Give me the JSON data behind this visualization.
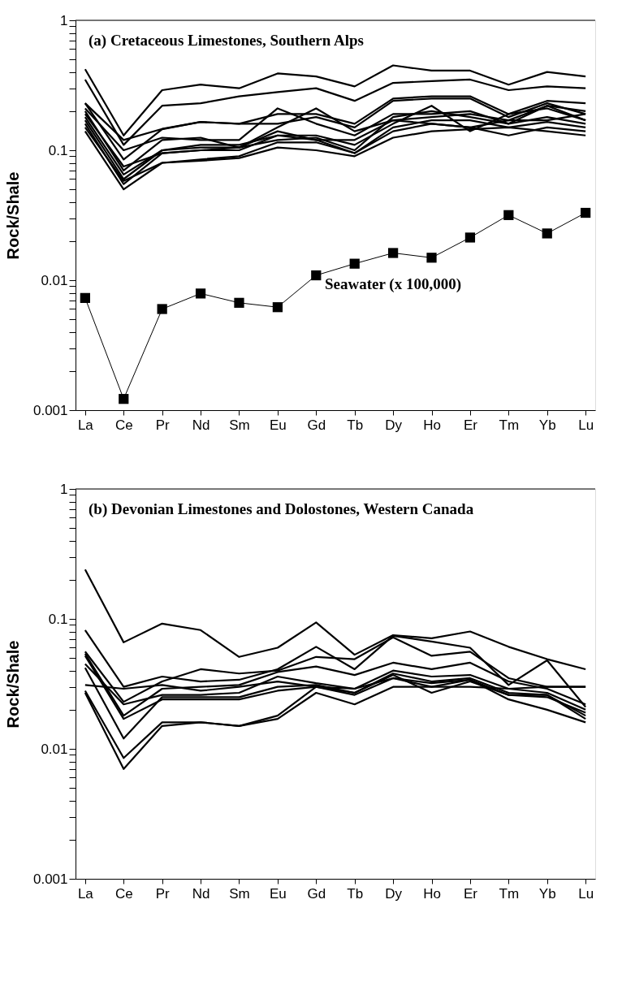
{
  "chart_data": [
    {
      "type": "line",
      "title": "(a) Cretaceous Limestones, Southern Alps",
      "ylabel": "Rock/Shale",
      "log": true,
      "grid": false,
      "marker": "none",
      "categories": [
        "La",
        "Ce",
        "Pr",
        "Nd",
        "Sm",
        "Eu",
        "Gd",
        "Tb",
        "Dy",
        "Ho",
        "Er",
        "Tm",
        "Yb",
        "Lu"
      ],
      "ylim": [
        0.001,
        1
      ],
      "yticks": [
        0.001,
        {
          "value": 0.002,
          "label": null
        },
        {
          "value": 0.003,
          "label": null
        },
        {
          "value": 0.004,
          "label": null
        },
        {
          "value": 0.005,
          "label": null
        },
        {
          "value": 0.006,
          "label": null
        },
        {
          "value": 0.007,
          "label": null
        },
        {
          "value": 0.008,
          "label": null
        },
        {
          "value": 0.009,
          "label": null
        },
        0.01,
        {
          "value": 0.02,
          "label": null
        },
        {
          "value": 0.03,
          "label": null
        },
        {
          "value": 0.04,
          "label": null
        },
        {
          "value": 0.05,
          "label": null
        },
        {
          "value": 0.06,
          "label": null
        },
        {
          "value": 0.07,
          "label": null
        },
        {
          "value": 0.08,
          "label": null
        },
        {
          "value": 0.09,
          "label": null
        },
        0.1,
        {
          "value": 0.2,
          "label": null
        },
        {
          "value": 0.3,
          "label": null
        },
        {
          "value": 0.4,
          "label": null
        },
        {
          "value": 0.5,
          "label": null
        },
        {
          "value": 0.6,
          "label": null
        },
        {
          "value": 0.7,
          "label": null
        },
        {
          "value": 0.8,
          "label": null
        },
        {
          "value": 0.9,
          "label": null
        },
        1
      ],
      "annotations": [
        "Seawater (x 100,000)"
      ],
      "series": [
        {
          "color": "#000000",
          "values": [
            0.42,
            0.13,
            0.29,
            0.32,
            0.3,
            0.39,
            0.37,
            0.31,
            0.45,
            0.41,
            0.41,
            0.32,
            0.4,
            0.37
          ]
        },
        {
          "color": "#000000",
          "values": [
            0.35,
            0.11,
            0.22,
            0.23,
            0.26,
            0.28,
            0.3,
            0.24,
            0.33,
            0.34,
            0.35,
            0.29,
            0.31,
            0.3
          ]
        },
        {
          "color": "#000000",
          "values": [
            0.23,
            0.12,
            0.146,
            0.165,
            0.16,
            0.19,
            0.19,
            0.16,
            0.25,
            0.26,
            0.26,
            0.19,
            0.24,
            0.23
          ]
        },
        {
          "color": "#000000",
          "values": [
            0.23,
            0.085,
            0.145,
            0.165,
            0.16,
            0.16,
            0.18,
            0.15,
            0.24,
            0.25,
            0.25,
            0.18,
            0.23,
            0.19
          ]
        },
        {
          "color": "#000000",
          "values": [
            0.21,
            0.1,
            0.125,
            0.12,
            0.12,
            0.21,
            0.16,
            0.13,
            0.19,
            0.19,
            0.2,
            0.16,
            0.22,
            0.2
          ]
        },
        {
          "color": "#000000",
          "values": [
            0.2,
            0.07,
            0.12,
            0.125,
            0.105,
            0.15,
            0.21,
            0.14,
            0.17,
            0.18,
            0.19,
            0.17,
            0.22,
            0.17
          ]
        },
        {
          "color": "#000000",
          "values": [
            0.18,
            0.065,
            0.1,
            0.11,
            0.11,
            0.13,
            0.13,
            0.11,
            0.16,
            0.22,
            0.14,
            0.19,
            0.21,
            0.17
          ]
        },
        {
          "color": "#000000",
          "values": [
            0.17,
            0.06,
            0.1,
            0.105,
            0.105,
            0.12,
            0.125,
            0.1,
            0.18,
            0.2,
            0.18,
            0.16,
            0.18,
            0.16
          ]
        },
        {
          "color": "#000000",
          "values": [
            0.16,
            0.055,
            0.095,
            0.1,
            0.1,
            0.13,
            0.12,
            0.095,
            0.15,
            0.17,
            0.17,
            0.15,
            0.165,
            0.15
          ]
        },
        {
          "color": "#000000",
          "values": [
            0.15,
            0.058,
            0.08,
            0.085,
            0.09,
            0.115,
            0.115,
            0.095,
            0.14,
            0.16,
            0.15,
            0.13,
            0.15,
            0.14
          ]
        },
        {
          "color": "#000000",
          "values": [
            0.14,
            0.05,
            0.08,
            0.083,
            0.087,
            0.105,
            0.1,
            0.09,
            0.125,
            0.14,
            0.145,
            0.15,
            0.14,
            0.13
          ]
        },
        {
          "color": "#000000",
          "values": [
            0.19,
            0.075,
            0.095,
            0.1,
            0.105,
            0.14,
            0.12,
            0.12,
            0.17,
            0.16,
            0.15,
            0.17,
            0.17,
            0.19
          ]
        },
        {
          "color": "#000000",
          "marker": "square",
          "values": [
            0.0073,
            0.00122,
            0.006,
            0.0079,
            0.0067,
            0.0062,
            0.0109,
            0.0134,
            0.0162,
            0.0149,
            0.0213,
            0.0317,
            0.0229,
            0.033
          ]
        }
      ]
    },
    {
      "type": "line",
      "title": "(b) Devonian Limestones and Dolostones, Western Canada",
      "ylabel": "Rock/Shale",
      "log": true,
      "grid": false,
      "marker": "none",
      "categories": [
        "La",
        "Ce",
        "Pr",
        "Nd",
        "Sm",
        "Eu",
        "Gd",
        "Tb",
        "Dy",
        "Ho",
        "Er",
        "Tm",
        "Yb",
        "Lu"
      ],
      "ylim": [
        0.001,
        1
      ],
      "yticks": [
        0.001,
        {
          "value": 0.002,
          "label": null
        },
        {
          "value": 0.003,
          "label": null
        },
        {
          "value": 0.004,
          "label": null
        },
        {
          "value": 0.005,
          "label": null
        },
        {
          "value": 0.006,
          "label": null
        },
        {
          "value": 0.007,
          "label": null
        },
        {
          "value": 0.008,
          "label": null
        },
        {
          "value": 0.009,
          "label": null
        },
        0.01,
        {
          "value": 0.02,
          "label": null
        },
        {
          "value": 0.03,
          "label": null
        },
        {
          "value": 0.04,
          "label": null
        },
        {
          "value": 0.05,
          "label": null
        },
        {
          "value": 0.06,
          "label": null
        },
        {
          "value": 0.07,
          "label": null
        },
        {
          "value": 0.08,
          "label": null
        },
        {
          "value": 0.09,
          "label": null
        },
        0.1,
        {
          "value": 0.2,
          "label": null
        },
        {
          "value": 0.3,
          "label": null
        },
        {
          "value": 0.4,
          "label": null
        },
        {
          "value": 0.5,
          "label": null
        },
        {
          "value": 0.6,
          "label": null
        },
        {
          "value": 0.7,
          "label": null
        },
        {
          "value": 0.8,
          "label": null
        },
        {
          "value": 0.9,
          "label": null
        },
        1
      ],
      "series": [
        {
          "color": "#000000",
          "values": [
            0.24,
            0.066,
            0.092,
            0.082,
            0.051,
            0.06,
            0.094,
            0.053,
            0.075,
            0.071,
            0.08,
            0.061,
            0.049,
            0.041
          ]
        },
        {
          "color": "#000000",
          "values": [
            0.082,
            0.03,
            0.036,
            0.033,
            0.034,
            0.041,
            0.061,
            0.041,
            0.074,
            0.067,
            0.06,
            0.031,
            0.048,
            0.021
          ]
        },
        {
          "color": "#000000",
          "values": [
            0.056,
            0.023,
            0.033,
            0.041,
            0.038,
            0.04,
            0.051,
            0.049,
            0.072,
            0.052,
            0.056,
            0.035,
            0.03,
            0.03
          ]
        },
        {
          "color": "#000000",
          "values": [
            0.054,
            0.018,
            0.029,
            0.03,
            0.031,
            0.039,
            0.043,
            0.037,
            0.046,
            0.041,
            0.046,
            0.033,
            0.029,
            0.022
          ]
        },
        {
          "color": "#000000",
          "values": [
            0.045,
            0.022,
            0.026,
            0.026,
            0.027,
            0.036,
            0.032,
            0.029,
            0.04,
            0.036,
            0.037,
            0.029,
            0.027,
            0.02
          ]
        },
        {
          "color": "#000000",
          "values": [
            0.042,
            0.012,
            0.025,
            0.025,
            0.025,
            0.03,
            0.031,
            0.027,
            0.038,
            0.033,
            0.035,
            0.027,
            0.026,
            0.018
          ]
        },
        {
          "color": "#000000",
          "values": [
            0.031,
            0.029,
            0.031,
            0.028,
            0.03,
            0.033,
            0.03,
            0.029,
            0.035,
            0.03,
            0.03,
            0.029,
            0.03,
            0.03
          ]
        },
        {
          "color": "#000000",
          "values": [
            0.028,
            0.0085,
            0.016,
            0.016,
            0.015,
            0.018,
            0.03,
            0.027,
            0.037,
            0.027,
            0.033,
            0.026,
            0.026,
            0.017
          ]
        },
        {
          "color": "#000000",
          "values": [
            0.027,
            0.007,
            0.015,
            0.016,
            0.015,
            0.017,
            0.027,
            0.022,
            0.03,
            0.03,
            0.034,
            0.024,
            0.02,
            0.016
          ]
        },
        {
          "color": "#000000",
          "values": [
            0.052,
            0.017,
            0.024,
            0.024,
            0.024,
            0.028,
            0.03,
            0.026,
            0.035,
            0.032,
            0.034,
            0.026,
            0.025,
            0.019
          ]
        }
      ]
    }
  ]
}
